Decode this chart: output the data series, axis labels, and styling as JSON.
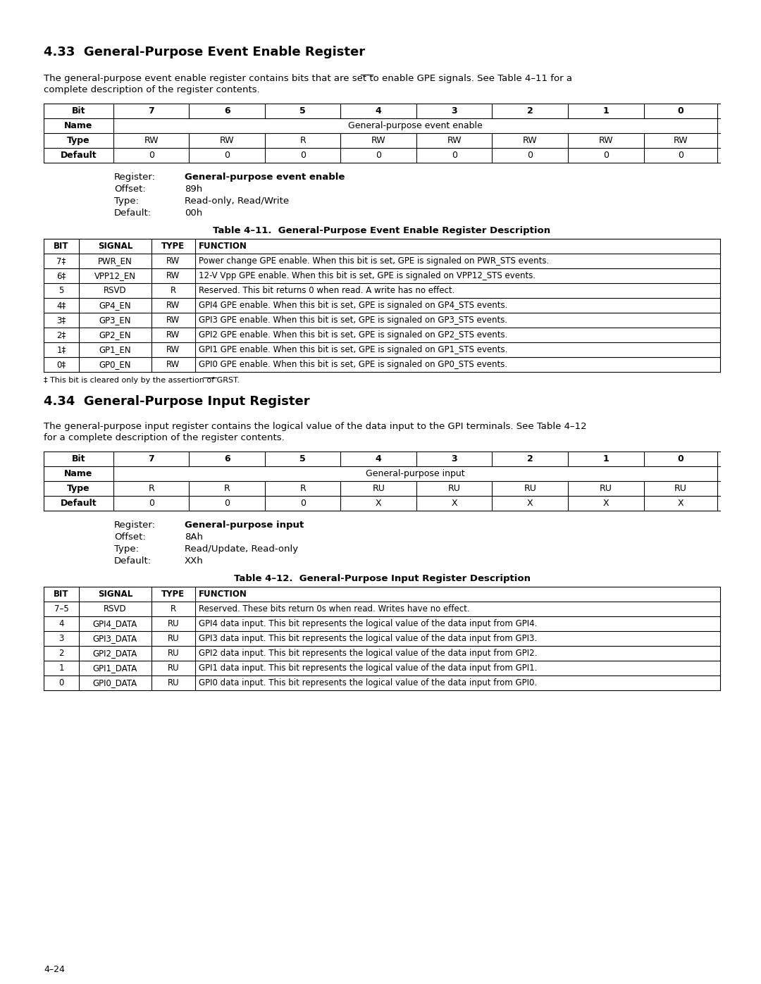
{
  "page_bg": "#ffffff",
  "section1_title": "4.33  General-Purpose Event Enable Register",
  "section1_body1": "The general-purpose event enable register contains bits that are set to enable ",
  "section1_body1_overline": "GPE",
  "section1_body2": " signals. See Table 4–11 for a",
  "section1_body3": "complete description of the register contents.",
  "reg1_rows": [
    [
      "Bit",
      "7",
      "6",
      "5",
      "4",
      "3",
      "2",
      "1",
      "0"
    ],
    [
      "Name",
      "General-purpose event enable"
    ],
    [
      "Type",
      "RW",
      "RW",
      "R",
      "RW",
      "RW",
      "RW",
      "RW",
      "RW"
    ],
    [
      "Default",
      "0",
      "0",
      "0",
      "0",
      "0",
      "0",
      "0",
      "0"
    ]
  ],
  "reg1_info": [
    [
      "Register:",
      "General-purpose event enable",
      true
    ],
    [
      "Offset:",
      "89h",
      false
    ],
    [
      "Type:",
      "Read-only, Read/Write",
      false
    ],
    [
      "Default:",
      "00h",
      false
    ]
  ],
  "table11_title": "Table 4–11.  General-Purpose Event Enable Register Description",
  "table11_header": [
    "BIT",
    "SIGNAL",
    "TYPE",
    "FUNCTION"
  ],
  "table11_rows": [
    [
      "7‡",
      "PWR_EN",
      "RW",
      "Power change GPE enable. When this bit is set, GPE is signaled on PWR_STS events."
    ],
    [
      "6‡",
      "VPP12_EN",
      "RW",
      "12-V Vpp GPE enable. When this bit is set, GPE is signaled on VPP12_STS events."
    ],
    [
      "5",
      "RSVD",
      "R",
      "Reserved. This bit returns 0 when read. A write has no effect."
    ],
    [
      "4‡",
      "GP4_EN",
      "RW",
      "GPI4 GPE enable. When this bit is set, GPE is signaled on GP4_STS events."
    ],
    [
      "3‡",
      "GP3_EN",
      "RW",
      "GPI3 GPE enable. When this bit is set, GPE is signaled on GP3_STS events."
    ],
    [
      "2‡",
      "GP2_EN",
      "RW",
      "GPI2 GPE enable. When this bit is set, GPE is signaled on GP2_STS events."
    ],
    [
      "1‡",
      "GP1_EN",
      "RW",
      "GPI1 GPE enable. When this bit is set, GPE is signaled on GP1_STS events."
    ],
    [
      "0‡",
      "GP0_EN",
      "RW",
      "GPI0 GPE enable. When this bit is set, GPE is signaled on GP0_STS events."
    ]
  ],
  "footnote1": "‡ This bit is cleared only by the assertion of ",
  "footnote1_overline": "GRST",
  "footnote1_end": ".",
  "section2_title": "4.34  General-Purpose Input Register",
  "section2_body1": "The general-purpose input register contains the logical value of the data input to the GPI terminals. See Table 4–12",
  "section2_body2": "for a complete description of the register contents.",
  "reg2_rows": [
    [
      "Bit",
      "7",
      "6",
      "5",
      "4",
      "3",
      "2",
      "1",
      "0"
    ],
    [
      "Name",
      "General-purpose input"
    ],
    [
      "Type",
      "R",
      "R",
      "R",
      "RU",
      "RU",
      "RU",
      "RU",
      "RU"
    ],
    [
      "Default",
      "0",
      "0",
      "0",
      "X",
      "X",
      "X",
      "X",
      "X"
    ]
  ],
  "reg2_info": [
    [
      "Register:",
      "General-purpose input",
      true
    ],
    [
      "Offset:",
      "8Ah",
      false
    ],
    [
      "Type:",
      "Read/Update, Read-only",
      false
    ],
    [
      "Default:",
      "XXh",
      false
    ]
  ],
  "table12_title": "Table 4–12.  General-Purpose Input Register Description",
  "table12_header": [
    "BIT",
    "SIGNAL",
    "TYPE",
    "FUNCTION"
  ],
  "table12_rows": [
    [
      "7–5",
      "RSVD",
      "R",
      "Reserved. These bits return 0s when read. Writes have no effect."
    ],
    [
      "4",
      "GPI4_DATA",
      "RU",
      "GPI4 data input. This bit represents the logical value of the data input from GPI4."
    ],
    [
      "3",
      "GPI3_DATA",
      "RU",
      "GPI3 data input. This bit represents the logical value of the data input from GPI3."
    ],
    [
      "2",
      "GPI2_DATA",
      "RU",
      "GPI2 data input. This bit represents the logical value of the data input from GPI2."
    ],
    [
      "1",
      "GPI1_DATA",
      "RU",
      "GPI1 data input. This bit represents the logical value of the data input from GPI1."
    ],
    [
      "0",
      "GPI0_DATA",
      "RU",
      "GPI0 data input. This bit represents the logical value of the data input from GPI0."
    ]
  ],
  "page_number": "4–24"
}
